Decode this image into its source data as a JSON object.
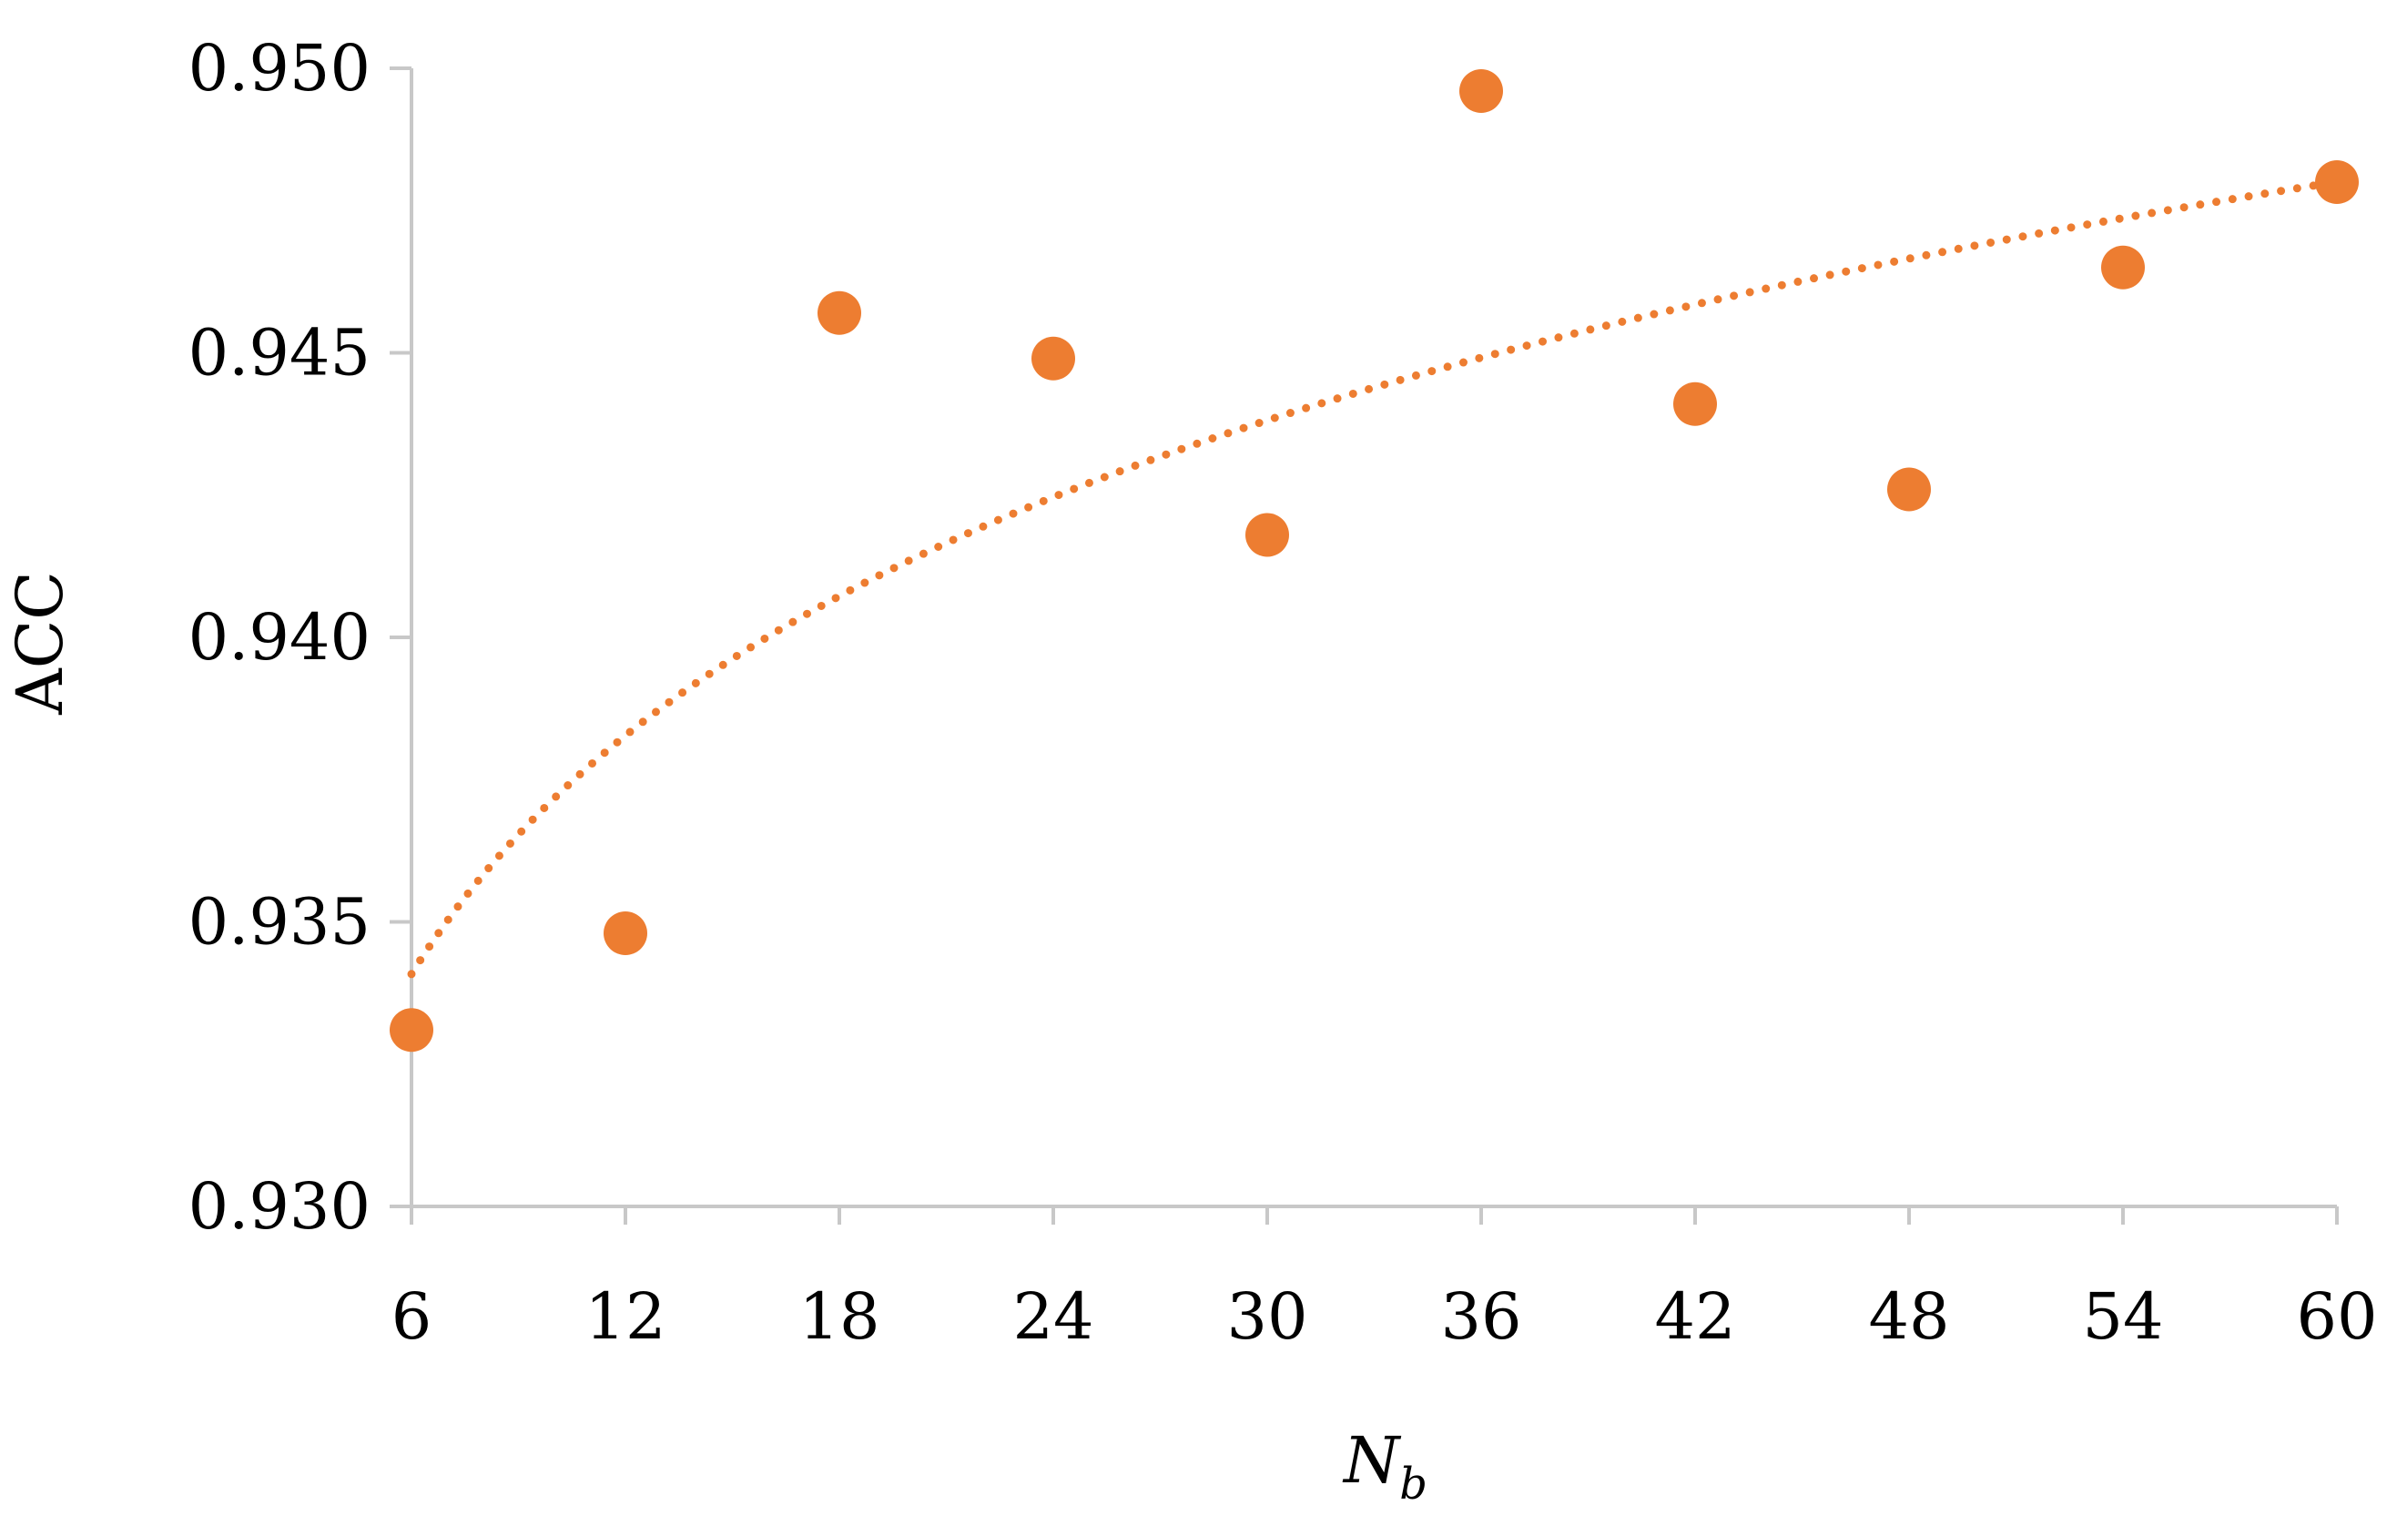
{
  "chart_data": {
    "type": "scatter",
    "title": "",
    "xlabel": "N",
    "xlabel_subscript": "b",
    "ylabel": "ACC",
    "xlim": [
      6,
      60
    ],
    "ylim": [
      0.93,
      0.95
    ],
    "x_ticks": [
      "6",
      "12",
      "18",
      "24",
      "30",
      "36",
      "42",
      "48",
      "54",
      "60"
    ],
    "y_ticks": [
      "0.930",
      "0.935",
      "0.940",
      "0.945",
      "0.950"
    ],
    "grid": false,
    "legend": "none",
    "series": [
      {
        "x": [
          6,
          12,
          18,
          24,
          30,
          36,
          42,
          48,
          54,
          60
        ],
        "y": [
          0.9331,
          0.9348,
          0.9457,
          0.9449,
          0.9418,
          0.9496,
          0.9441,
          0.9426,
          0.9465,
          0.948
        ],
        "color": "#ED7D31",
        "marker": "circle"
      }
    ],
    "trendline": {
      "type": "logarithmic",
      "style": "dotted",
      "color": "#ED7D31",
      "a": 0.006046,
      "b": 0.92325
    }
  }
}
